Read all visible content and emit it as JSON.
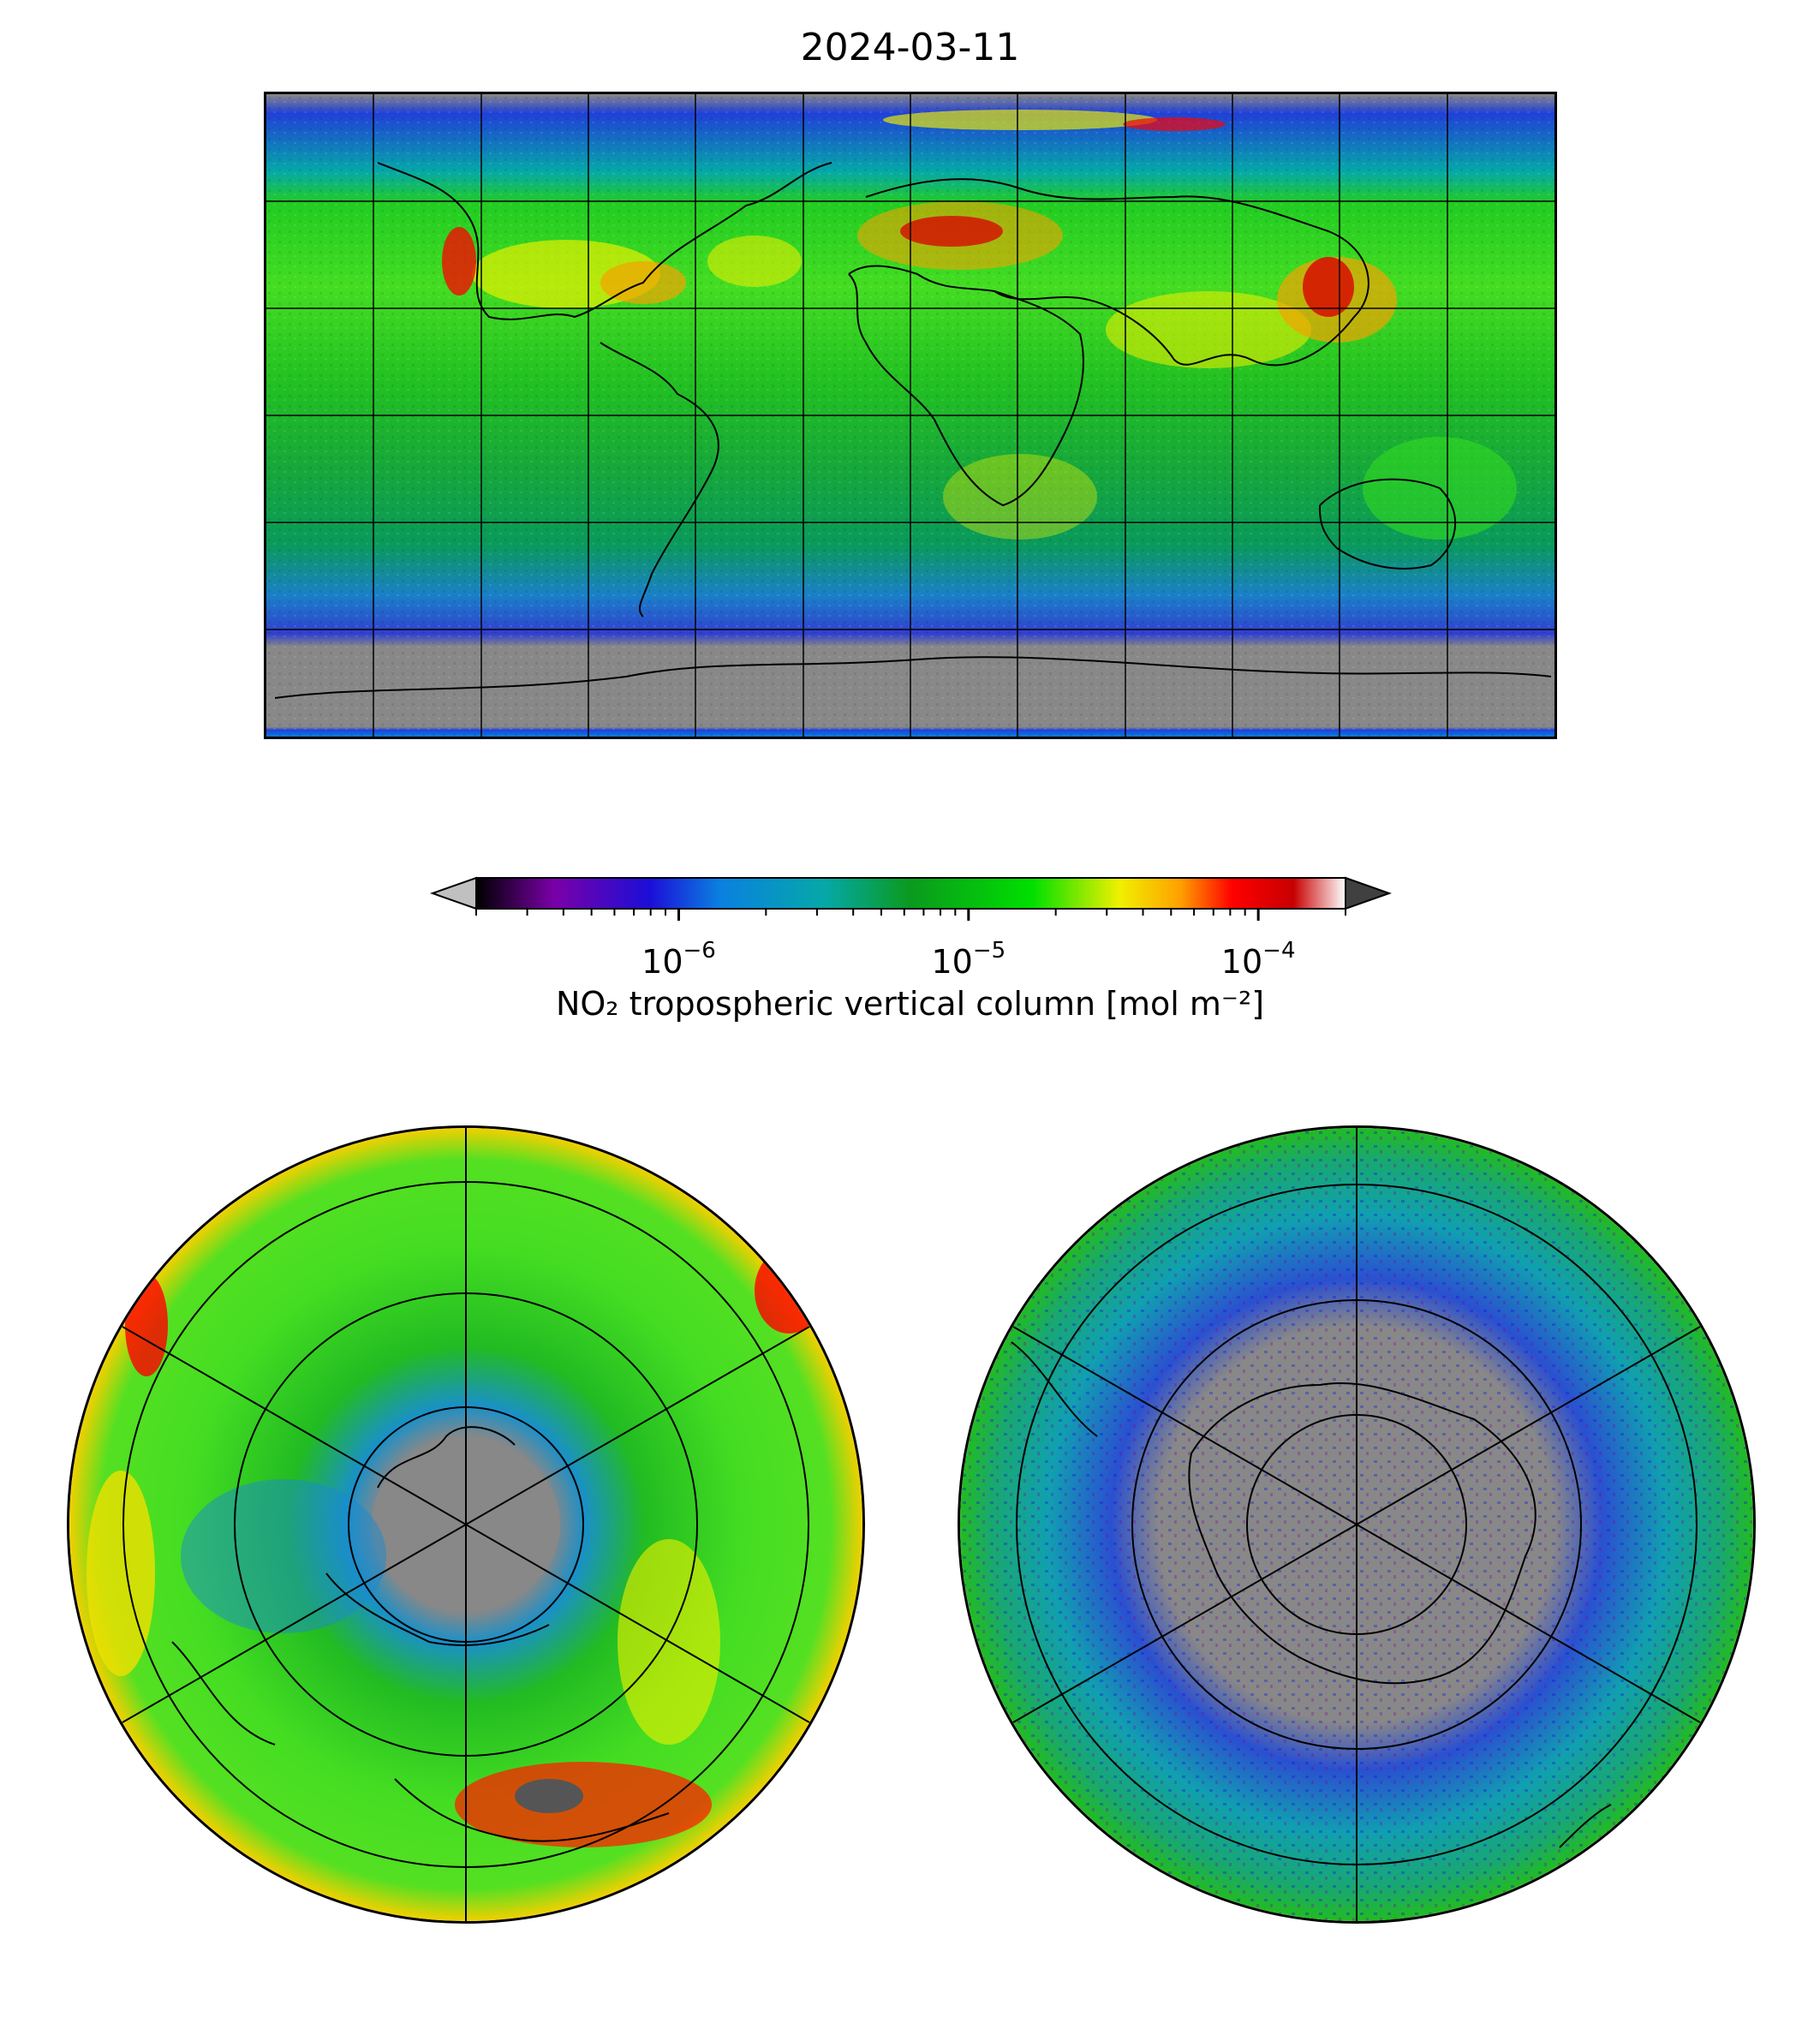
{
  "figure": {
    "title": "2024-03-11"
  },
  "colorbar": {
    "label": "NO₂ tropospheric vertical column [mol m⁻²]",
    "scale": "log",
    "range": [
      2e-07,
      0.0002
    ],
    "extend": "both",
    "ticks": [
      {
        "value": 1e-06,
        "base": "10",
        "exponent": "−6"
      },
      {
        "value": 1e-05,
        "base": "10",
        "exponent": "−5"
      },
      {
        "value": 0.0001,
        "base": "10",
        "exponent": "−4"
      }
    ],
    "colors": [
      "#000000",
      "#7a00a8",
      "#1b0ed8",
      "#0a80e0",
      "#05a8a8",
      "#0a9a1e",
      "#00e000",
      "#f0f000",
      "#ffa000",
      "#ff0000",
      "#c80000",
      "#ffffff"
    ],
    "under_color": "#c0c0c0",
    "over_color": "#404040",
    "fill_value_color": "#888888"
  },
  "panels": {
    "global": {
      "projection": "plate-carree",
      "gridlines": true
    },
    "north_pole": {
      "projection": "north-polar-stereographic",
      "gridlines": true
    },
    "south_pole": {
      "projection": "south-polar-stereographic",
      "gridlines": true
    }
  }
}
